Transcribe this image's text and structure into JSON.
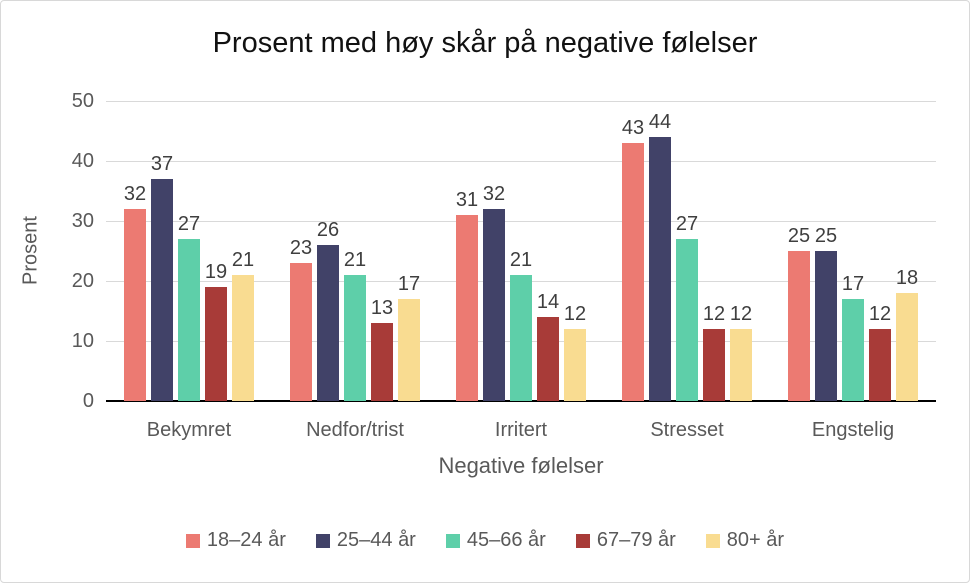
{
  "frame": {
    "background": "#ffffff",
    "border_color": "#d8d8d8"
  },
  "chart_data": {
    "type": "bar",
    "title": "Prosent med høy skår på negative følelser",
    "xlabel": "Negative følelser",
    "ylabel": "Prosent",
    "categories": [
      "Bekymret",
      "Nedfor/trist",
      "Irritert",
      "Stresset",
      "Engstelig"
    ],
    "series": [
      {
        "name": "18–24 år",
        "color": "#ec7a72",
        "values": [
          32,
          23,
          31,
          43,
          25
        ]
      },
      {
        "name": "25–44 år",
        "color": "#414268",
        "values": [
          37,
          26,
          32,
          44,
          25
        ]
      },
      {
        "name": "45–66 år",
        "color": "#5ecfa9",
        "values": [
          27,
          21,
          21,
          27,
          17
        ]
      },
      {
        "name": "67–79 år",
        "color": "#a83b38",
        "values": [
          19,
          13,
          14,
          12,
          12
        ]
      },
      {
        "name": "80+ år",
        "color": "#f9dc91",
        "values": [
          21,
          17,
          12,
          12,
          18
        ]
      }
    ],
    "ylim": [
      0,
      50
    ],
    "yticks": [
      0,
      10,
      20,
      30,
      40,
      50
    ],
    "grid": true,
    "data_labels": true,
    "legend_position": "bottom",
    "colors": {
      "gridline": "#d9d9d9",
      "axis_line": "#000000",
      "tick_text": "#595959",
      "data_label_text": "#3f3f3f",
      "title_text": "#111111"
    }
  }
}
